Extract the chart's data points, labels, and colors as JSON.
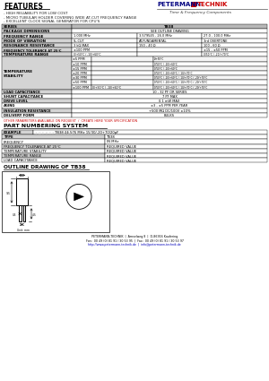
{
  "title": "FEATURES",
  "features": [
    "- HIGH RELIABILITY FOR LOW COST",
    "- MICRO TUBULAR HOLDER COVERING WIDE AT-CUT FREQUENCY RANGE",
    "- EXCELLENT CLOCK SIGNAL GENERATOR FOR CPU'S"
  ],
  "logo_text1": "PETERMANN",
  "logo_text2": "TECHNIK",
  "logo_sub": "Time & Frequency Components",
  "spec_rows": [
    {
      "label": "SERIES",
      "cols": [
        "TB38"
      ],
      "span": true
    },
    {
      "label": "PACKAGE DIMENSIONS",
      "cols": [
        "SEE OUTLINE DRAWING"
      ],
      "span": true
    },
    {
      "label": "FREQUENCY RANGE",
      "cols": [
        "1.000 MHz",
        "3.579545 - 26.0 MHz",
        "27.0 - 100.0 MHz"
      ],
      "span": false
    },
    {
      "label": "MODE OF VIBRATION",
      "cols": [
        "SL-CUT",
        "AT-FUNDAMENTAL",
        "3rd OVERTONE"
      ],
      "span": false
    },
    {
      "label": "RESONANCE RESISTANCE",
      "cols": [
        "3 kΩ MAX",
        "150 - 40 Ω",
        "100 - 60 Ω"
      ],
      "span": false
    },
    {
      "label": "FREQUENCY TOLERANCE AT 25°C",
      "cols": [
        "±100 PPM",
        "",
        "±15 - ±50 PPM"
      ],
      "span": false
    },
    {
      "label": "TEMPERATURE RANGE",
      "cols": [
        "0/+50°C / -10/+60°C",
        "",
        "0/50°C / -20/+70°C"
      ],
      "span": false
    }
  ],
  "temp_stability_rows": [
    [
      "±5 PPM",
      "",
      "0/+50°C"
    ],
    [
      "±10 PPM",
      "",
      "0/50°C / -10/+60°C"
    ],
    [
      "±15 PPM",
      "",
      "0/50°C / -10/+60°C"
    ],
    [
      "±20 PPM",
      "",
      "0/50°C / -10/+60°C / -10/+70°C"
    ],
    [
      "±30 PPM",
      "",
      "0/50°C / -10/+60°C / -10/+70°C / -20/+70°C"
    ],
    [
      "±50 PPM",
      "",
      "0/50°C / -10/+60°C / -10/+70°C / -20/+70°C"
    ],
    [
      "±100 PPM",
      "0/+50°C / -10/+60°C",
      "0/50°C / -10/+60°C / -10/+70°C / -20/+70°C"
    ]
  ],
  "lower_rows": [
    [
      "LOAD CAPACITANCE",
      "10 - 32 PF OR SERIES"
    ],
    [
      "SHUNT CAPACITANCE",
      "7 PF MAX"
    ],
    [
      "DRIVE LEVEL",
      "0.1 mW MAX"
    ],
    [
      "AGING",
      "±3 - ±5 PPM PER YEAR"
    ],
    [
      "INSULATION RESISTANCE",
      "+500 MΩ DC/100V ±10%"
    ],
    [
      "DELIVERY FORM",
      "BULKS"
    ]
  ],
  "note_red": "OTHER PARAMETERS AVAILABLE ON REQUEST  /  CREATE HERE YOUR SPECIFICATION",
  "part_numbering_title": "PART NUMBERING SYSTEM",
  "example_label": "EXAMPLE",
  "example_value": "TB38 24.576 MHz 15/30/-20+70/20pF",
  "ordering_rows": [
    [
      "TYPE",
      "TB38"
    ],
    [
      "FREQUENCY",
      "IN MHz"
    ],
    [
      "FREQUENCY TOLERANCE AT 25°C",
      "REQUIRED VALUE"
    ],
    [
      "TEMPERATURE STABILITY",
      "REQUIRED VALUE"
    ],
    [
      "TEMPERATURE RANGE",
      "REQUIRED VALUE"
    ],
    [
      "LOAD CAPACITANCE",
      "REQUIRED VALUE"
    ]
  ],
  "outline_title": "OUTLINE DRAWING OF TB38",
  "footer_lines": [
    "PETERMANN-TECHNIK  |  Amselweg 8  |  D-86916 Kaufering",
    "Fon:  00 49 (0) 81 91 / 30 53 95  |  Fax:  00 49 (0) 81 91 / 30 53 97",
    "http://www.petermann-technik.de  |  info@petermann-technik.de"
  ],
  "bg_color": "#ffffff",
  "hdr_bg": "#b8b8b8",
  "row_bg_dark": "#d4d4d4",
  "row_bg_light": "#ececec",
  "red_color": "#cc0000",
  "blue_color": "#0000bb",
  "logo_red": "#cc0000",
  "logo_blue": "#000080"
}
